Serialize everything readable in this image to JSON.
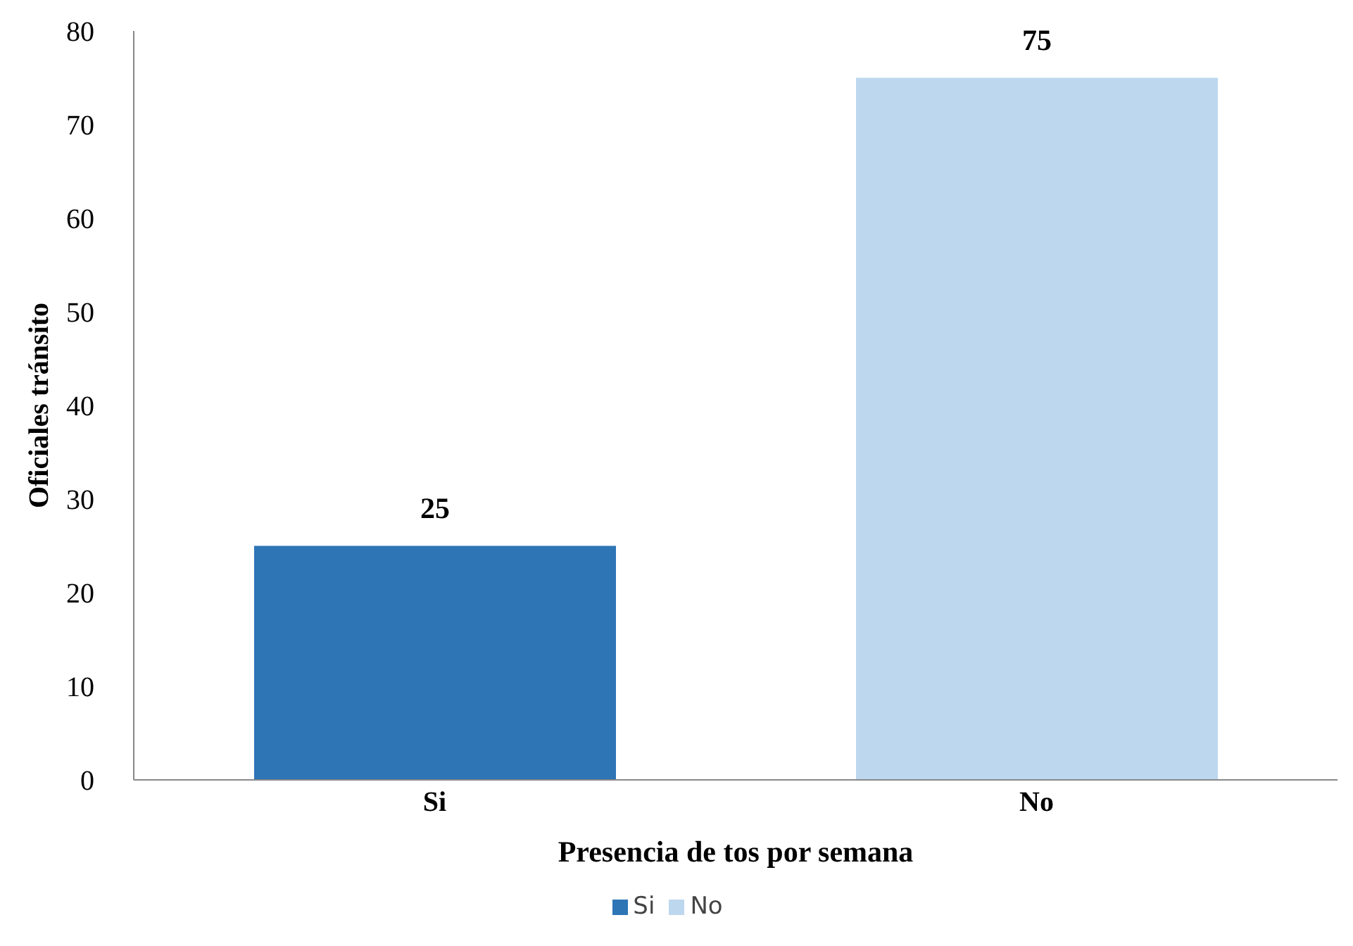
{
  "chart_data": {
    "type": "bar",
    "xlabel": "Presencia de tos por semana",
    "ylabel": "Oficiales tránsito",
    "categories": [
      "Si",
      "No"
    ],
    "series": [
      {
        "name": "Si",
        "color": "#2e75b6",
        "values": [
          25,
          null
        ]
      },
      {
        "name": "No",
        "color": "#bdd7ee",
        "values": [
          null,
          75
        ]
      }
    ],
    "ylim": [
      0,
      80
    ],
    "yticks": [
      0,
      10,
      20,
      30,
      40,
      50,
      60,
      70,
      80
    ],
    "legend": "bottom",
    "data_labels": true
  }
}
